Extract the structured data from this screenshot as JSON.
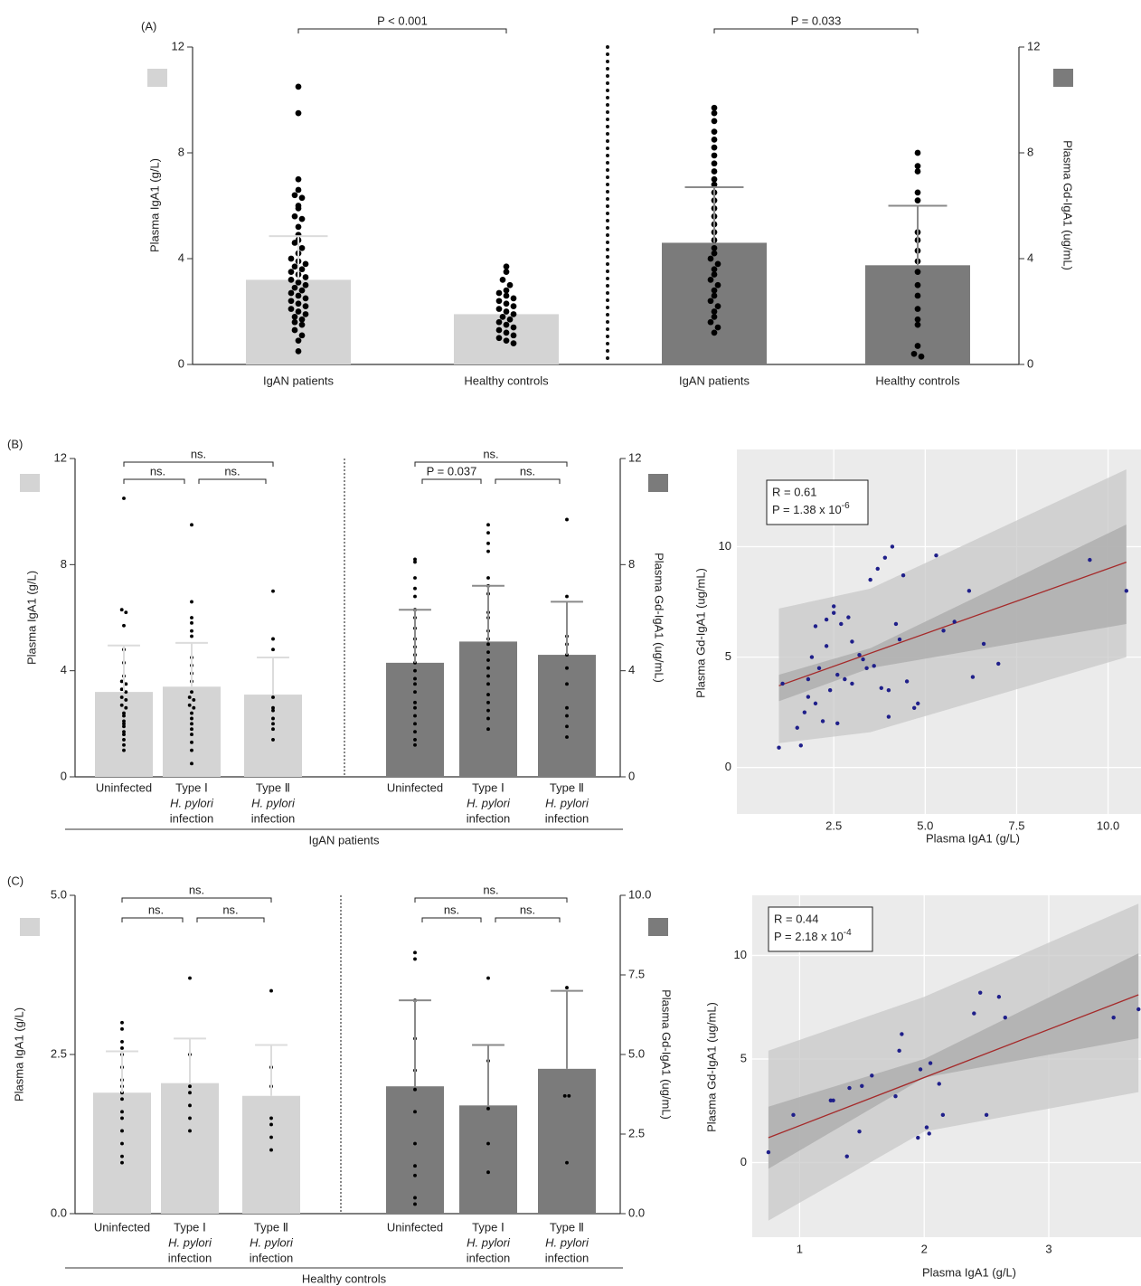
{
  "chart_data": [
    {
      "type": "bar",
      "label": "(A)",
      "y_label": "Plasma IgA1 (g/L)",
      "y2_label": "Plasma Gd-IgA1  (ug/mL)",
      "ylim": [
        0,
        12
      ],
      "yticks": [
        0,
        4,
        8,
        12
      ],
      "y2lim": [
        0,
        12
      ],
      "y2ticks": [
        0,
        4,
        8,
        12
      ],
      "categories": [
        "IgAN patients",
        "Healthy controls",
        "IgAN patients",
        "Healthy controls"
      ],
      "series": [
        {
          "color": "#d4d4d4",
          "axis": "y",
          "values": [
            3.2,
            1.9,
            null,
            null
          ],
          "errors": [
            1.65,
            null,
            null,
            null
          ],
          "points": [
            [
              10.5,
              9.5,
              7.0,
              6.6,
              6.4,
              6.3,
              6.0,
              5.9,
              5.6,
              5.5,
              5.2,
              4.9,
              4.7,
              4.6,
              4.4,
              4.2,
              4.0,
              3.9,
              3.8,
              3.7,
              3.6,
              3.5,
              3.4,
              3.3,
              3.2,
              3.1,
              3.0,
              2.9,
              2.8,
              2.7,
              2.6,
              2.5,
              2.4,
              2.3,
              2.2,
              2.1,
              2.0,
              1.9,
              1.8,
              1.7,
              1.6,
              1.5,
              1.3,
              1.1,
              0.9,
              0.5
            ],
            [
              3.7,
              3.5,
              3.2,
              3.0,
              2.8,
              2.7,
              2.6,
              2.5,
              2.4,
              2.3,
              2.2,
              2.1,
              2.0,
              1.9,
              1.8,
              1.7,
              1.6,
              1.5,
              1.4,
              1.3,
              1.2,
              1.1,
              1.0,
              0.9,
              0.8
            ],
            null,
            null
          ]
        },
        {
          "color": "#7b7b7b",
          "axis": "y2",
          "values": [
            null,
            null,
            4.6,
            3.75
          ],
          "errors": [
            null,
            null,
            2.1,
            2.25
          ],
          "points": [
            null,
            null,
            [
              9.7,
              9.5,
              9.2,
              8.8,
              8.5,
              8.2,
              7.9,
              7.6,
              7.3,
              7.0,
              6.8,
              6.5,
              6.2,
              5.9,
              5.6,
              5.3,
              5.0,
              4.7,
              4.4,
              4.2,
              4.0,
              3.8,
              3.6,
              3.4,
              3.2,
              3.0,
              2.8,
              2.6,
              2.4,
              2.2,
              2.0,
              1.8,
              1.6,
              1.4,
              1.2
            ],
            [
              8.0,
              7.5,
              7.3,
              6.5,
              6.2,
              5.0,
              4.7,
              4.3,
              3.9,
              3.5,
              3.0,
              2.6,
              2.1,
              1.7,
              1.5,
              0.7,
              0.4,
              0.3
            ]
          ]
        }
      ],
      "comparisons": [
        "P < 0.001",
        "P = 0.033"
      ]
    },
    {
      "type": "bar",
      "label": "(B)",
      "y_label": "Plasma IgA1 (g/L)",
      "y2_label": "Plasma Gd-IgA1 (ug/mL)",
      "ylim": [
        0,
        12
      ],
      "yticks": [
        0,
        4,
        8,
        12
      ],
      "y2lim": [
        0,
        12
      ],
      "y2ticks": [
        0,
        4,
        8,
        12
      ],
      "categories": [
        [
          "Uninfected"
        ],
        [
          "Type Ⅰ",
          "H. pylori",
          "infection"
        ],
        [
          "Type Ⅱ",
          "H. pylori",
          "infection"
        ],
        [
          "Uninfected"
        ],
        [
          "Type Ⅰ",
          "H. pylori",
          "infection"
        ],
        [
          "Type Ⅱ",
          "H. pylori",
          "infection"
        ]
      ],
      "series": [
        {
          "color": "#d4d4d4",
          "axis": "y",
          "values": [
            3.2,
            3.4,
            3.1,
            null,
            null,
            null
          ],
          "errors": [
            1.75,
            1.65,
            1.4,
            null,
            null,
            null
          ],
          "points": [
            [
              10.5,
              6.3,
              6.2,
              5.7,
              4.8,
              4.3,
              3.8,
              3.6,
              3.5,
              3.3,
              3.2,
              3.0,
              2.9,
              2.7,
              2.6,
              2.4,
              2.3,
              2.1,
              2.0,
              1.9,
              1.7,
              1.6,
              1.4,
              1.2,
              1.0
            ],
            [
              9.5,
              6.6,
              6.0,
              5.8,
              5.5,
              5.3,
              4.5,
              4.2,
              3.9,
              3.6,
              3.2,
              3.0,
              2.9,
              2.7,
              2.6,
              2.4,
              2.2,
              2.0,
              1.8,
              1.6,
              1.3,
              1.0,
              0.5
            ],
            [
              7.0,
              5.2,
              4.8,
              3.0,
              2.6,
              2.5,
              2.2,
              2.0,
              1.8,
              1.4
            ],
            null,
            null,
            null
          ]
        },
        {
          "color": "#7b7b7b",
          "axis": "y2",
          "values": [
            null,
            null,
            null,
            4.3,
            5.1,
            4.6
          ],
          "errors": [
            null,
            null,
            null,
            2.0,
            2.1,
            2.0
          ],
          "points": [
            null,
            null,
            null,
            [
              8.2,
              8.1,
              7.5,
              7.1,
              6.8,
              6.3,
              6.0,
              5.6,
              5.2,
              4.9,
              4.6,
              4.3,
              4.0,
              3.7,
              3.5,
              3.2,
              2.8,
              2.6,
              2.3,
              2.0,
              1.7,
              1.4,
              1.2
            ],
            [
              9.5,
              9.2,
              8.8,
              8.5,
              7.5,
              7.2,
              6.9,
              6.2,
              6.0,
              5.5,
              5.2,
              5.0,
              4.7,
              4.4,
              4.1,
              3.8,
              3.5,
              3.1,
              2.8,
              2.5,
              2.2,
              1.8
            ],
            [
              9.7,
              6.8,
              5.3,
              5.0,
              4.6,
              4.1,
              3.5,
              2.6,
              2.3,
              1.9,
              1.5
            ]
          ]
        }
      ],
      "comparisons": [
        "ns.",
        "ns.",
        "ns.",
        "ns.",
        "P = 0.037",
        "ns."
      ],
      "group_label": "IgAN patients"
    },
    {
      "type": "scatter",
      "x_label": "Plasma IgA1 (g/L)",
      "y_label": "Plasma Gd-IgA1 (ug/mL)",
      "xlim": [
        -0.15,
        10.9
      ],
      "ylim": [
        -2.1,
        14.4
      ],
      "xticks": [
        {
          "value": 2.5,
          "label": "2.5"
        },
        {
          "value": 5,
          "label": "5.0"
        },
        {
          "value": 7.5,
          "label": "7.5"
        },
        {
          "value": 10,
          "label": "10.0"
        }
      ],
      "yticks": [
        0,
        5,
        10
      ],
      "color": "#1f1f8a",
      "x": [
        1.0,
        1.1,
        1.5,
        1.6,
        1.7,
        1.8,
        1.9,
        2.0,
        2.1,
        2.2,
        2.3,
        2.4,
        2.5,
        2.6,
        2.7,
        2.8,
        2.9,
        3.0,
        3.2,
        3.4,
        3.5,
        3.6,
        3.7,
        3.8,
        3.9,
        4.0,
        4.1,
        4.2,
        4.3,
        4.4,
        4.5,
        4.7,
        5.3,
        5.5,
        5.8,
        6.2,
        6.3,
        6.6,
        7.0,
        9.5,
        10.5,
        2.0,
        2.3,
        2.6,
        3.0,
        3.3,
        1.8,
        2.5,
        4.0,
        4.8
      ],
      "y": [
        0.9,
        3.8,
        1.8,
        1.0,
        2.5,
        3.2,
        5.0,
        6.4,
        4.5,
        2.1,
        6.7,
        3.5,
        7.3,
        4.2,
        6.5,
        4.0,
        6.8,
        3.8,
        5.1,
        4.5,
        8.5,
        4.6,
        9.0,
        3.6,
        9.5,
        3.5,
        10.0,
        6.5,
        5.8,
        8.7,
        3.9,
        2.7,
        9.6,
        6.2,
        6.6,
        8.0,
        4.1,
        5.6,
        4.7,
        9.4,
        8.0,
        2.9,
        5.5,
        2.0,
        5.7,
        4.9,
        4.0,
        7.0,
        2.3,
        2.9
      ],
      "fit": {
        "x": [
          1.0,
          10.5
        ],
        "y": [
          3.7,
          9.3
        ],
        "color": "#a52a2a"
      },
      "band_outer": {
        "x": [
          1.0,
          3.5,
          10.5
        ],
        "lower": [
          1.1,
          1.6,
          5.0
        ],
        "upper": [
          7.2,
          8.1,
          13.5
        ],
        "color": "#c8c8c8"
      },
      "band_inner": {
        "x": [
          1.0,
          3.5,
          10.5
        ],
        "lower": [
          3.0,
          4.5,
          6.5
        ],
        "upper": [
          4.2,
          5.4,
          11.0
        ],
        "color": "#a9a9a9"
      },
      "stats": {
        "r": "R = 0.61",
        "p": "P = 1.38 x 10",
        "p_exponent": "-6"
      }
    },
    {
      "type": "bar",
      "label": "(C)",
      "y_label": "Plasma IgA1 (g/L)",
      "y2_label": "Plasma Gd-IgA1 (ug/mL)",
      "ylim": [
        0,
        5
      ],
      "yticks": [
        {
          "value": 0,
          "label": "0.0"
        },
        {
          "value": 2.5,
          "label": "2.5"
        },
        {
          "value": 5,
          "label": "5.0"
        }
      ],
      "y2lim": [
        0,
        10
      ],
      "y2ticks": [
        {
          "value": 0,
          "label": "0.0"
        },
        {
          "value": 2.5,
          "label": "2.5"
        },
        {
          "value": 5,
          "label": "5.0"
        },
        {
          "value": 7.5,
          "label": "7.5"
        },
        {
          "value": 10,
          "label": "10.0"
        }
      ],
      "categories": [
        [
          "Uninfected"
        ],
        [
          "Type Ⅰ",
          "H. pylori",
          "infection"
        ],
        [
          "Type Ⅱ",
          "H. pylori",
          "infection"
        ],
        [
          "Uninfected"
        ],
        [
          "Type Ⅰ",
          "H. pylori",
          "infection"
        ],
        [
          "Type Ⅱ",
          "H. pylori",
          "infection"
        ]
      ],
      "series": [
        {
          "color": "#d4d4d4",
          "axis": "y",
          "values": [
            1.9,
            2.05,
            1.85,
            null,
            null,
            null
          ],
          "errors": [
            0.65,
            0.7,
            0.8,
            null,
            null,
            null
          ],
          "points": [
            [
              3.0,
              2.9,
              2.7,
              2.6,
              2.5,
              2.3,
              2.1,
              2.0,
              1.9,
              1.8,
              1.6,
              1.5,
              1.3,
              1.1,
              0.9,
              0.8
            ],
            [
              3.7,
              2.5,
              2.0,
              1.9,
              1.7,
              1.5,
              1.3
            ],
            [
              3.5,
              2.3,
              2.0,
              1.5,
              1.4,
              1.2,
              1.0
            ],
            null,
            null,
            null
          ]
        },
        {
          "color": "#7b7b7b",
          "axis": "y2",
          "values": [
            null,
            null,
            null,
            4.0,
            3.4,
            4.55
          ],
          "errors": [
            null,
            null,
            null,
            2.7,
            1.9,
            2.45
          ],
          "points": [
            null,
            null,
            null,
            [
              8.2,
              8.0,
              6.7,
              5.5,
              4.5,
              3.9,
              3.2,
              2.2,
              1.5,
              1.2,
              0.5,
              0.3
            ],
            [
              7.4,
              4.8,
              3.3,
              2.2,
              1.3
            ],
            [
              7.1,
              3.7,
              3.7,
              1.6
            ]
          ]
        }
      ],
      "comparisons": [
        "ns.",
        "ns.",
        "ns.",
        "ns.",
        "ns.",
        "ns."
      ],
      "group_label": "Healthy controls"
    },
    {
      "type": "scatter",
      "x_label": "Plasma IgA1 (g/L)",
      "y_label": "Plasma Gd-IgA1 (ug/mL)",
      "xlim": [
        0.62,
        3.74
      ],
      "ylim": [
        -3.6,
        12.9
      ],
      "xticks": [
        1,
        2,
        3
      ],
      "yticks": [
        0,
        5,
        10
      ],
      "color": "#1f1f8a",
      "x": [
        0.75,
        0.95,
        1.25,
        1.27,
        1.38,
        1.4,
        1.48,
        1.5,
        1.58,
        1.77,
        1.8,
        1.82,
        1.95,
        1.97,
        2.02,
        2.04,
        2.05,
        2.12,
        2.15,
        2.4,
        2.45,
        2.5,
        2.6,
        2.65,
        3.52,
        3.72
      ],
      "y": [
        0.5,
        2.3,
        3.0,
        3.0,
        0.3,
        3.6,
        1.5,
        3.7,
        4.2,
        3.2,
        5.4,
        6.2,
        1.2,
        4.5,
        1.7,
        1.4,
        4.8,
        3.8,
        2.3,
        7.2,
        8.2,
        2.3,
        8.0,
        7.0,
        7.0,
        7.4
      ],
      "fit": {
        "x": [
          0.75,
          3.72
        ],
        "y": [
          1.2,
          8.1
        ],
        "color": "#a52a2a"
      },
      "band_outer": {
        "x": [
          0.75,
          2.0,
          3.72
        ],
        "lower": [
          -2.8,
          1.5,
          3.4
        ],
        "upper": [
          5.4,
          8.0,
          12.5
        ],
        "color": "#c8c8c8"
      },
      "band_inner": {
        "x": [
          0.75,
          2.0,
          3.72
        ],
        "lower": [
          -0.3,
          4.1,
          6.0
        ],
        "upper": [
          2.7,
          5.0,
          10.1
        ],
        "color": "#a9a9a9"
      },
      "stats": {
        "r": "R = 0.44",
        "p": "P = 2.18 x 10",
        "p_exponent": "-4"
      }
    }
  ]
}
